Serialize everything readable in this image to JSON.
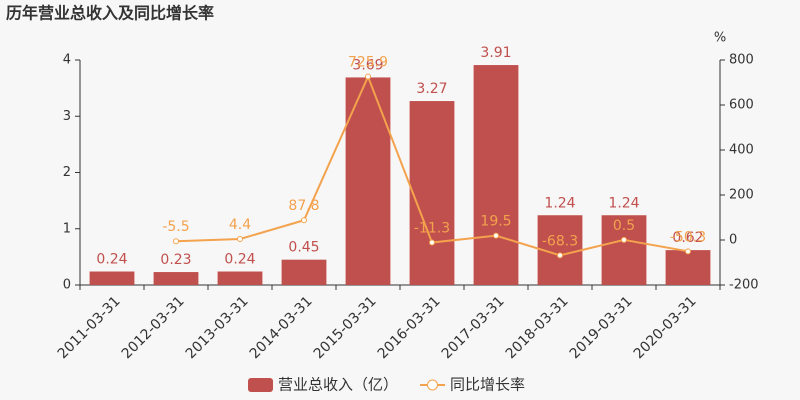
{
  "chart_data": {
    "type": "bar",
    "title": "历年营业总收入及同比增长率",
    "y2_unit": "%",
    "categories": [
      "2011-03-31",
      "2012-03-31",
      "2013-03-31",
      "2014-03-31",
      "2015-03-31",
      "2016-03-31",
      "2017-03-31",
      "2018-03-31",
      "2019-03-31",
      "2020-03-31"
    ],
    "series": [
      {
        "name": "营业总收入（亿）",
        "type": "bar",
        "color": "#c0504d",
        "values": [
          0.24,
          0.23,
          0.24,
          0.45,
          3.69,
          3.27,
          3.91,
          1.24,
          1.24,
          0.62
        ]
      },
      {
        "name": "同比增长率",
        "type": "line",
        "axis": "y2",
        "color": "#f3a24d",
        "values": [
          null,
          -5.5,
          4.4,
          87.8,
          725.9,
          -11.3,
          19.5,
          -68.3,
          0.5,
          -50.3
        ]
      }
    ],
    "ylim": [
      0,
      4
    ],
    "yticks": [
      0,
      1,
      2,
      3,
      4
    ],
    "y2lim": [
      -200,
      800
    ],
    "y2ticks": [
      -200,
      0,
      200,
      400,
      600,
      800
    ],
    "legend": "bottom"
  }
}
